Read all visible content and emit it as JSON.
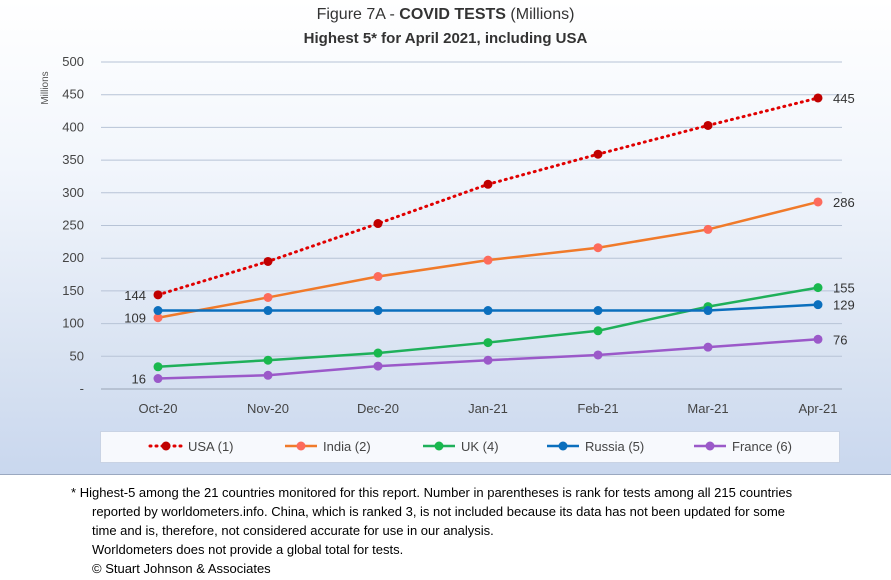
{
  "title_prefix": "Figure 7A - ",
  "title_bold": "COVID TESTS",
  "title_suffix": " (Millions)",
  "subtitle": "Highest 5* for April 2021, including USA",
  "chart_data": {
    "type": "line",
    "categories": [
      "Oct-20",
      "Nov-20",
      "Dec-20",
      "Jan-21",
      "Feb-21",
      "Mar-21",
      "Apr-21"
    ],
    "ylabel": "Millions",
    "ylim": [
      0,
      500
    ],
    "ytick_labels": [
      "-",
      "50",
      "100",
      "150",
      "200",
      "250",
      "300",
      "350",
      "400",
      "450",
      "500"
    ],
    "grid": true,
    "legend_position": "bottom",
    "series": [
      {
        "name": "USA (1)",
        "color": "#e00000",
        "marker": "#c00000",
        "dashed": true,
        "values": [
          144,
          195,
          253,
          313,
          359,
          403,
          445
        ]
      },
      {
        "name": "India (2)",
        "color": "#f07a2a",
        "marker": "#fd6b5c",
        "dashed": false,
        "values": [
          109,
          140,
          172,
          197,
          216,
          244,
          286
        ]
      },
      {
        "name": "UK (4)",
        "color": "#1fb05a",
        "marker": "#19b84e",
        "dashed": false,
        "values": [
          34,
          44,
          55,
          71,
          89,
          126,
          155
        ]
      },
      {
        "name": "Russia (5)",
        "color": "#0b6fbd",
        "marker": "#0b6fbd",
        "dashed": false,
        "values": [
          120,
          120,
          120,
          120,
          120,
          120,
          129
        ]
      },
      {
        "name": "France (6)",
        "color": "#9b59c9",
        "marker": "#9b59c9",
        "dashed": false,
        "values": [
          16,
          21,
          35,
          44,
          52,
          64,
          76
        ]
      }
    ],
    "data_labels": [
      {
        "series": 0,
        "index": 0,
        "text": "144",
        "side": "left"
      },
      {
        "series": 1,
        "index": 0,
        "text": "109",
        "side": "left"
      },
      {
        "series": 4,
        "index": 0,
        "text": "16",
        "side": "left"
      },
      {
        "series": 0,
        "index": 6,
        "text": "445",
        "side": "right"
      },
      {
        "series": 1,
        "index": 6,
        "text": "286",
        "side": "right"
      },
      {
        "series": 2,
        "index": 6,
        "text": "155",
        "side": "right"
      },
      {
        "series": 3,
        "index": 6,
        "text": "129",
        "side": "right"
      },
      {
        "series": 4,
        "index": 6,
        "text": "76",
        "side": "right"
      }
    ]
  },
  "footnote": {
    "star": "*",
    "lines": [
      "Highest-5 among the 21 countries monitored for this report. Number in parentheses is rank for tests among all 215  countries",
      "reported by worldometers.info. China, which is ranked 3, is not included because its data has not been updated for some",
      "time and is, therefore, not considered accurate for use in our analysis.",
      "Worldometers does not provide a global total for tests.",
      "© Stuart Johnson & Associates"
    ]
  }
}
